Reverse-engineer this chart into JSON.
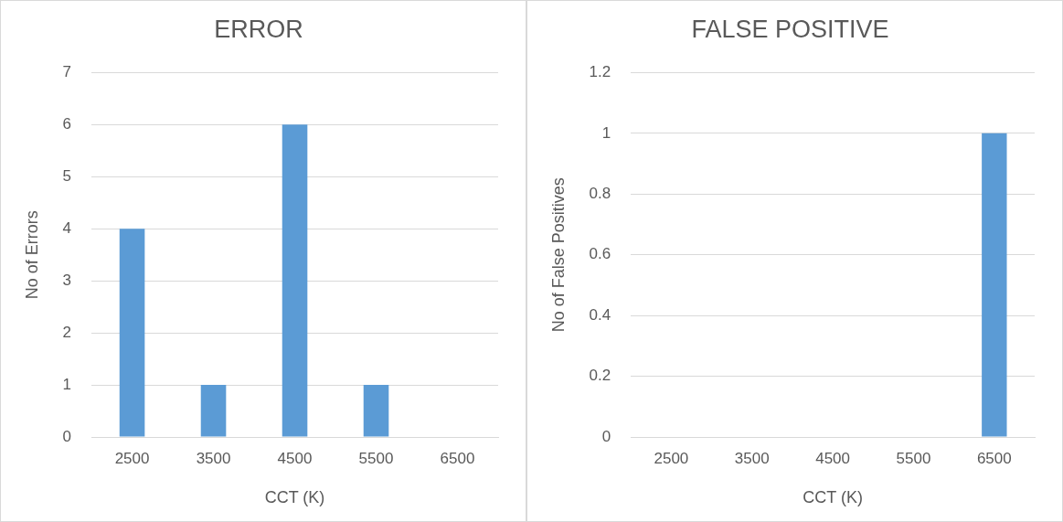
{
  "chart_data": [
    {
      "type": "bar",
      "title": "ERROR",
      "xlabel": "CCT (K)",
      "ylabel": "No of Errors",
      "categories": [
        "2500",
        "3500",
        "4500",
        "5500",
        "6500"
      ],
      "values": [
        4,
        1,
        6,
        1,
        0
      ],
      "color": "#5b9bd5",
      "ylim": [
        0,
        7
      ],
      "yticks": [
        0,
        1,
        2,
        3,
        4,
        5,
        6,
        7
      ],
      "grid": "y"
    },
    {
      "type": "bar",
      "title": "FALSE POSITIVE",
      "xlabel": "CCT (K)",
      "ylabel": "No of False Positives",
      "categories": [
        "2500",
        "3500",
        "4500",
        "5500",
        "6500"
      ],
      "values": [
        0,
        0,
        0,
        0,
        1
      ],
      "color": "#5b9bd5",
      "ylim": [
        0,
        1.2
      ],
      "yticks": [
        0,
        0.2,
        0.4,
        0.6,
        0.8,
        1,
        1.2
      ],
      "grid": "y"
    }
  ]
}
